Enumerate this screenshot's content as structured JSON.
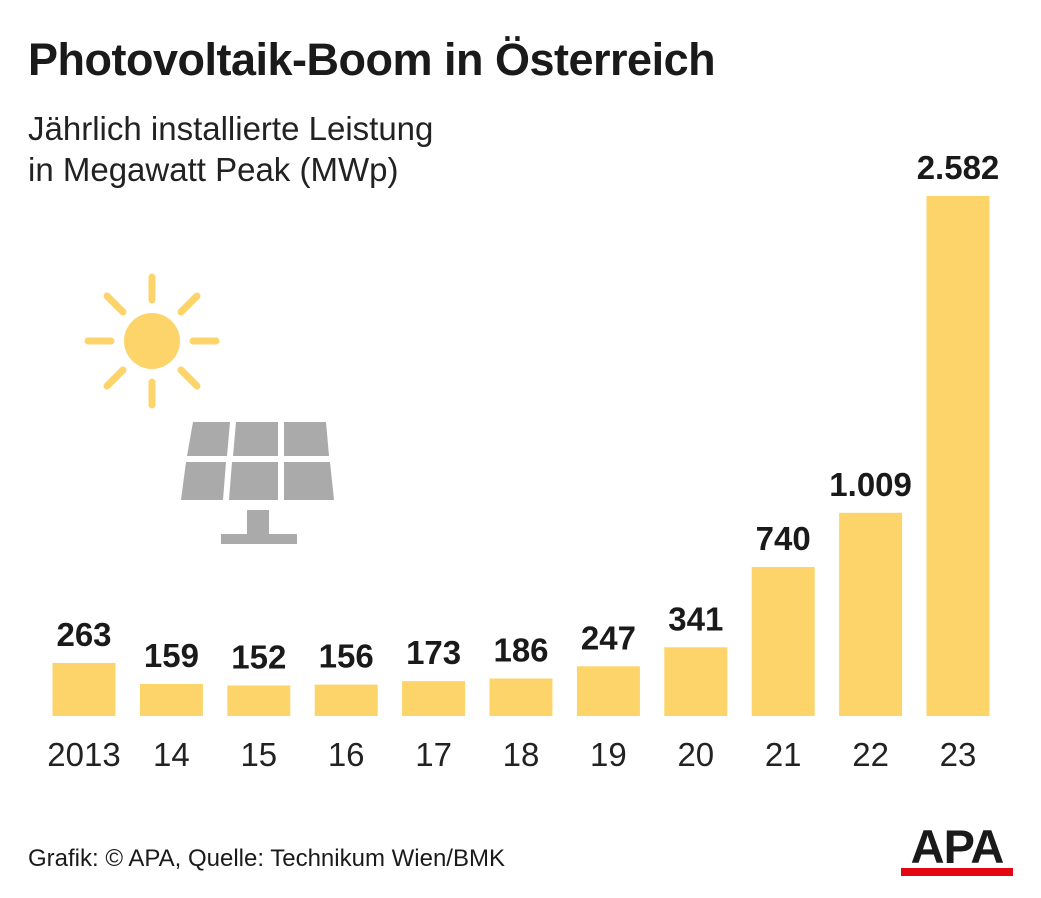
{
  "chart_data": {
    "type": "bar",
    "title": "Photovoltaik-Boom in Österreich",
    "subtitle_lines": [
      "Jährlich installierte Leistung",
      "in Megawatt Peak (MWp)"
    ],
    "categories": [
      "2013",
      "14",
      "15",
      "16",
      "17",
      "18",
      "19",
      "20",
      "21",
      "22",
      "23"
    ],
    "values": [
      263,
      159,
      152,
      156,
      173,
      186,
      247,
      341,
      740,
      1009,
      2582
    ],
    "value_labels": [
      "263",
      "159",
      "152",
      "156",
      "173",
      "186",
      "247",
      "341",
      "740",
      "1.009",
      "2.582"
    ],
    "ylim": [
      0,
      2582
    ],
    "grid": false,
    "legend": "none",
    "colors": {
      "bar": "#fcd46a",
      "text": "#1a1a1a",
      "sun": "#fcd46a",
      "panel": "#aaaaaa"
    }
  },
  "footer": {
    "source": "Grafik: © APA, Quelle: Technikum Wien/BMK"
  },
  "logo": {
    "text": "APA",
    "bar_color": "#e30613"
  },
  "icons": {
    "sun": "sun-icon",
    "panel": "solar-panel-icon"
  }
}
